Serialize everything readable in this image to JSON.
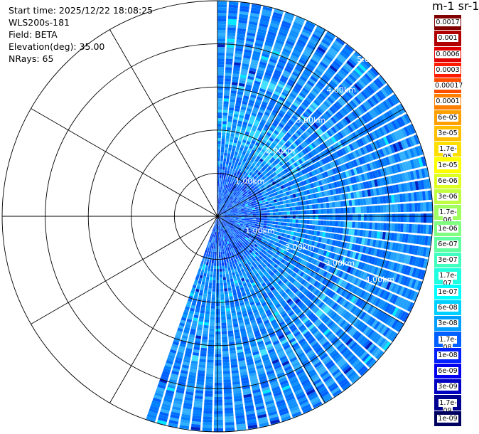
{
  "info": {
    "start_time": "Start time: 2025/12/22 18:08:25",
    "instrument": "WLS200s-181",
    "field": "Field: BETA",
    "elevation": "Elevation(deg): 35.00",
    "nrays": "NRays: 65"
  },
  "colorbar": {
    "unit_label": "m-1 sr-1",
    "ticks": [
      "0.0017",
      "0.001",
      "0.0006",
      "0.0003",
      "0.00017",
      "0.0001",
      "6e-05",
      "3e-05",
      "1.7e-05",
      "1e-05",
      "6e-06",
      "3e-06",
      "1.7e-06",
      "1e-06",
      "6e-07",
      "3e-07",
      "1.7e-07",
      "1e-07",
      "6e-08",
      "3e-08",
      "1.7e-08",
      "1e-08",
      "6e-09",
      "3e-09",
      "1.7e-09",
      "1e-09"
    ],
    "colors": [
      "#800000",
      "#b00000",
      "#e00000",
      "#ff1a00",
      "#ff4d00",
      "#ff8000",
      "#ff9f00",
      "#ffbf00",
      "#ffdf00",
      "#ffff00",
      "#dfff20",
      "#bfff40",
      "#9fff60",
      "#80ff80",
      "#60ff9f",
      "#40ffbf",
      "#20ffdf",
      "#00ffff",
      "#00d0ff",
      "#009fff",
      "#0060ff",
      "#0020ff",
      "#0000f0",
      "#0000c0",
      "#000090",
      "#000060"
    ]
  },
  "chart_data": {
    "type": "heatmap",
    "projection": "polar PPI (plan position indicator)",
    "field": "BETA",
    "elevation_deg": 35.0,
    "n_rays": 65,
    "azimuth_coverage_deg": [
      0,
      200
    ],
    "range_rings_km": [
      "1.00km",
      "2.00km",
      "3.00km",
      "4.00km",
      "5.00km"
    ],
    "range_rings_lower_km": [
      "1.00km",
      "2.00km",
      "3.00km",
      "4.00km"
    ],
    "max_range_km": 5.0,
    "dominant_value_range": [
      "1e-08",
      "1e-07"
    ],
    "spoke_angles_deg": [
      0,
      30,
      60,
      90,
      120,
      150,
      180,
      210,
      240,
      270,
      300,
      330
    ],
    "colorscale": "jet"
  }
}
